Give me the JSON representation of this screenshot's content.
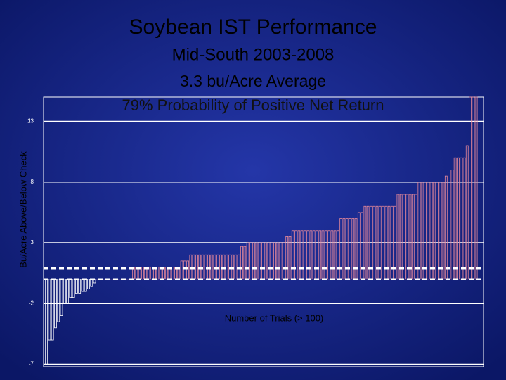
{
  "chart_data": {
    "type": "bar",
    "title": "Soybean IST Performance",
    "subtitles": [
      "Mid-South 2003-2008",
      "3.3 bu/Acre Average",
      "79% Probability of Positive Net Return"
    ],
    "y_label": "Bu/Acre Above/Below Check",
    "x_label": "Number of Trials (> 100)",
    "ylim": [
      -7.2,
      15
    ],
    "yticks": [
      13,
      8,
      3,
      -2,
      -7
    ],
    "grid": true,
    "color": "#e8899a",
    "negative_color": "#ffffff",
    "reference_line": 0.9,
    "values": [
      -7,
      -5,
      -5,
      -4,
      -3.5,
      -3,
      -2,
      -2,
      -1.5,
      -1.5,
      -1.2,
      -1.2,
      -1,
      -1,
      -0.8,
      -0.6,
      -0.3,
      0,
      0,
      0,
      0,
      0,
      0,
      0,
      0,
      0,
      0,
      0,
      0,
      1,
      1,
      1,
      1,
      1,
      1,
      1,
      1,
      1,
      1,
      1,
      1,
      1,
      1,
      1,
      1,
      1.5,
      1.5,
      1.5,
      2,
      2,
      2,
      2,
      2,
      2,
      2,
      2,
      2,
      2,
      2,
      2,
      2,
      2,
      2,
      2,
      2,
      2.7,
      2.7,
      3,
      3,
      3,
      3,
      3,
      3,
      3,
      3,
      3,
      3,
      3,
      3,
      3,
      3.5,
      3.5,
      4,
      4,
      4,
      4,
      4,
      4,
      4,
      4,
      4,
      4,
      4,
      4,
      4,
      4,
      4,
      4,
      5,
      5,
      5,
      5,
      5,
      5,
      5.5,
      5.5,
      6,
      6,
      6,
      6,
      6,
      6,
      6,
      6,
      6,
      6,
      6,
      7,
      7,
      7,
      7,
      7,
      7,
      7,
      8,
      8,
      8,
      8,
      8,
      8,
      8,
      8,
      8,
      8.5,
      9,
      9,
      10,
      10,
      10,
      10,
      11,
      15,
      15,
      15
    ]
  }
}
